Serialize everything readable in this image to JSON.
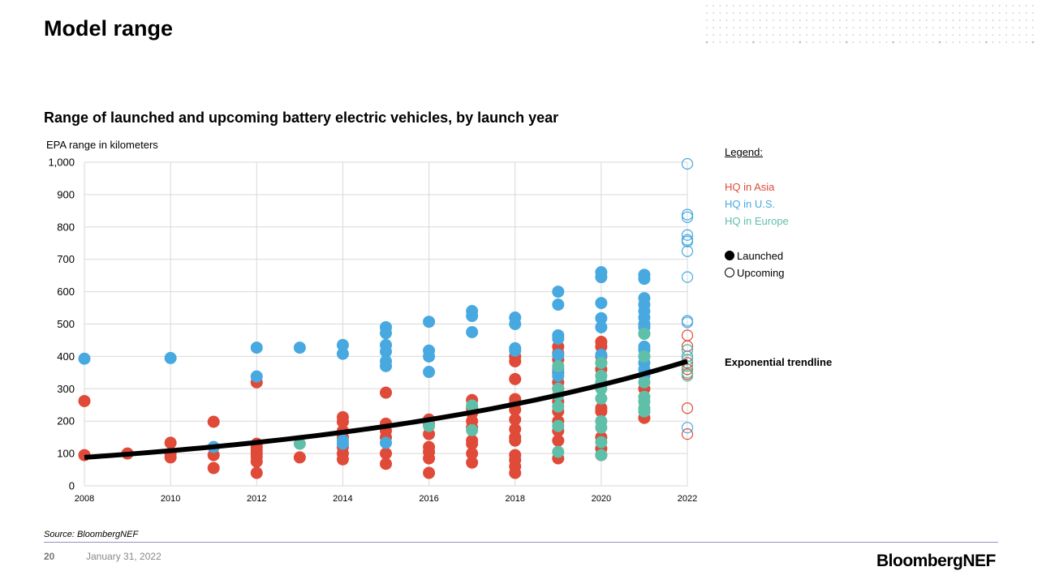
{
  "slide": {
    "title": "Model range",
    "source": "Source: BloombergNEF",
    "page_number": "20",
    "date": "January 31, 2022",
    "logo": "BloombergNEF"
  },
  "legend": {
    "title": "Legend:",
    "asia": "HQ in Asia",
    "us": "HQ in U.S.",
    "europe": "HQ in Europe",
    "launched": "Launched",
    "upcoming": "Upcoming",
    "trendline": "Exponential trendline"
  },
  "colors": {
    "asia": "#e04a38",
    "us": "#47a9e0",
    "europe": "#5fbfa8",
    "trend": "#000000",
    "grid": "#d9d9d9"
  },
  "chart_data": {
    "type": "scatter",
    "title": "Range of launched and upcoming battery electric vehicles, by launch year",
    "ylabel": "EPA range in kilometers",
    "xlabel": "",
    "xlim": [
      2008,
      2022
    ],
    "ylim": [
      0,
      1000
    ],
    "xticks": [
      "2008",
      "2010",
      "2012",
      "2014",
      "2016",
      "2018",
      "2020",
      "2022"
    ],
    "yticks": [
      "0",
      "100",
      "200",
      "300",
      "400",
      "500",
      "600",
      "700",
      "800",
      "900",
      "1,000"
    ],
    "grid": true,
    "legend_position": "right",
    "trendline": {
      "type": "exponential",
      "value_2008": 88,
      "value_2022": 385
    },
    "series": [
      {
        "name": "HQ in Asia",
        "status": "Launched",
        "points": {
          "2008": [
            262,
            95
          ],
          "2009": [
            100
          ],
          "2010": [
            133,
            100,
            88
          ],
          "2011": [
            198,
            95,
            55
          ],
          "2012": [
            320,
            130,
            120,
            110,
            100,
            90,
            75,
            40
          ],
          "2013": [
            88
          ],
          "2014": [
            212,
            198,
            170,
            150,
            120,
            100,
            82
          ],
          "2015": [
            288,
            192,
            170,
            150,
            100,
            68
          ],
          "2016": [
            205,
            190,
            160,
            120,
            105,
            85,
            40
          ],
          "2017": [
            265,
            240,
            225,
            200,
            180,
            140,
            130,
            100,
            72
          ],
          "2018": [
            400,
            385,
            330,
            268,
            255,
            235,
            205,
            175,
            150,
            140,
            95,
            80,
            60,
            40
          ],
          "2019": [
            430,
            410,
            390,
            350,
            320,
            300,
            260,
            230,
            200,
            170,
            140,
            85
          ],
          "2020": [
            445,
            430,
            400,
            360,
            240,
            230,
            150,
            115,
            95
          ],
          "2021": [
            300,
            210
          ]
        }
      },
      {
        "name": "HQ in U.S.",
        "status": "Launched",
        "points": {
          "2008": [
            393
          ],
          "2010": [
            395
          ],
          "2011": [
            120
          ],
          "2012": [
            427,
            338
          ],
          "2013": [
            427
          ],
          "2014": [
            435,
            408,
            140,
            130
          ],
          "2015": [
            490,
            472,
            435,
            415,
            385,
            370,
            133
          ],
          "2016": [
            507,
            418,
            400,
            352
          ],
          "2017": [
            540,
            525,
            475
          ],
          "2018": [
            520,
            500,
            425,
            418
          ],
          "2019": [
            600,
            560,
            465,
            455,
            405,
            360,
            340
          ],
          "2020": [
            660,
            645,
            565,
            518,
            490,
            405,
            380
          ],
          "2021": [
            652,
            640,
            580,
            560,
            540,
            520,
            500,
            490,
            470,
            430,
            420,
            400,
            380,
            360,
            340
          ]
        }
      },
      {
        "name": "HQ in Europe",
        "status": "Launched",
        "points": {
          "2013": [
            130
          ],
          "2016": [
            185
          ],
          "2017": [
            248,
            172
          ],
          "2019": [
            370,
            300,
            280,
            245,
            185,
            105
          ],
          "2020": [
            380,
            340,
            320,
            300,
            270,
            200,
            180,
            135,
            95
          ],
          "2021": [
            470,
            400,
            320,
            275,
            260,
            240,
            230
          ]
        }
      },
      {
        "name": "HQ in Asia",
        "status": "Upcoming",
        "points": {
          "2022": [
            465,
            432,
            420,
            400,
            380,
            360,
            345,
            240,
            160
          ]
        }
      },
      {
        "name": "HQ in U.S.",
        "status": "Upcoming",
        "points": {
          "2022": [
            995,
            838,
            830,
            775,
            760,
            755,
            725,
            645,
            510,
            505,
            420,
            400,
            180
          ]
        }
      },
      {
        "name": "HQ in Europe",
        "status": "Upcoming",
        "points": {
          "2022": [
            420,
            390,
            370,
            350,
            340
          ]
        }
      }
    ]
  }
}
